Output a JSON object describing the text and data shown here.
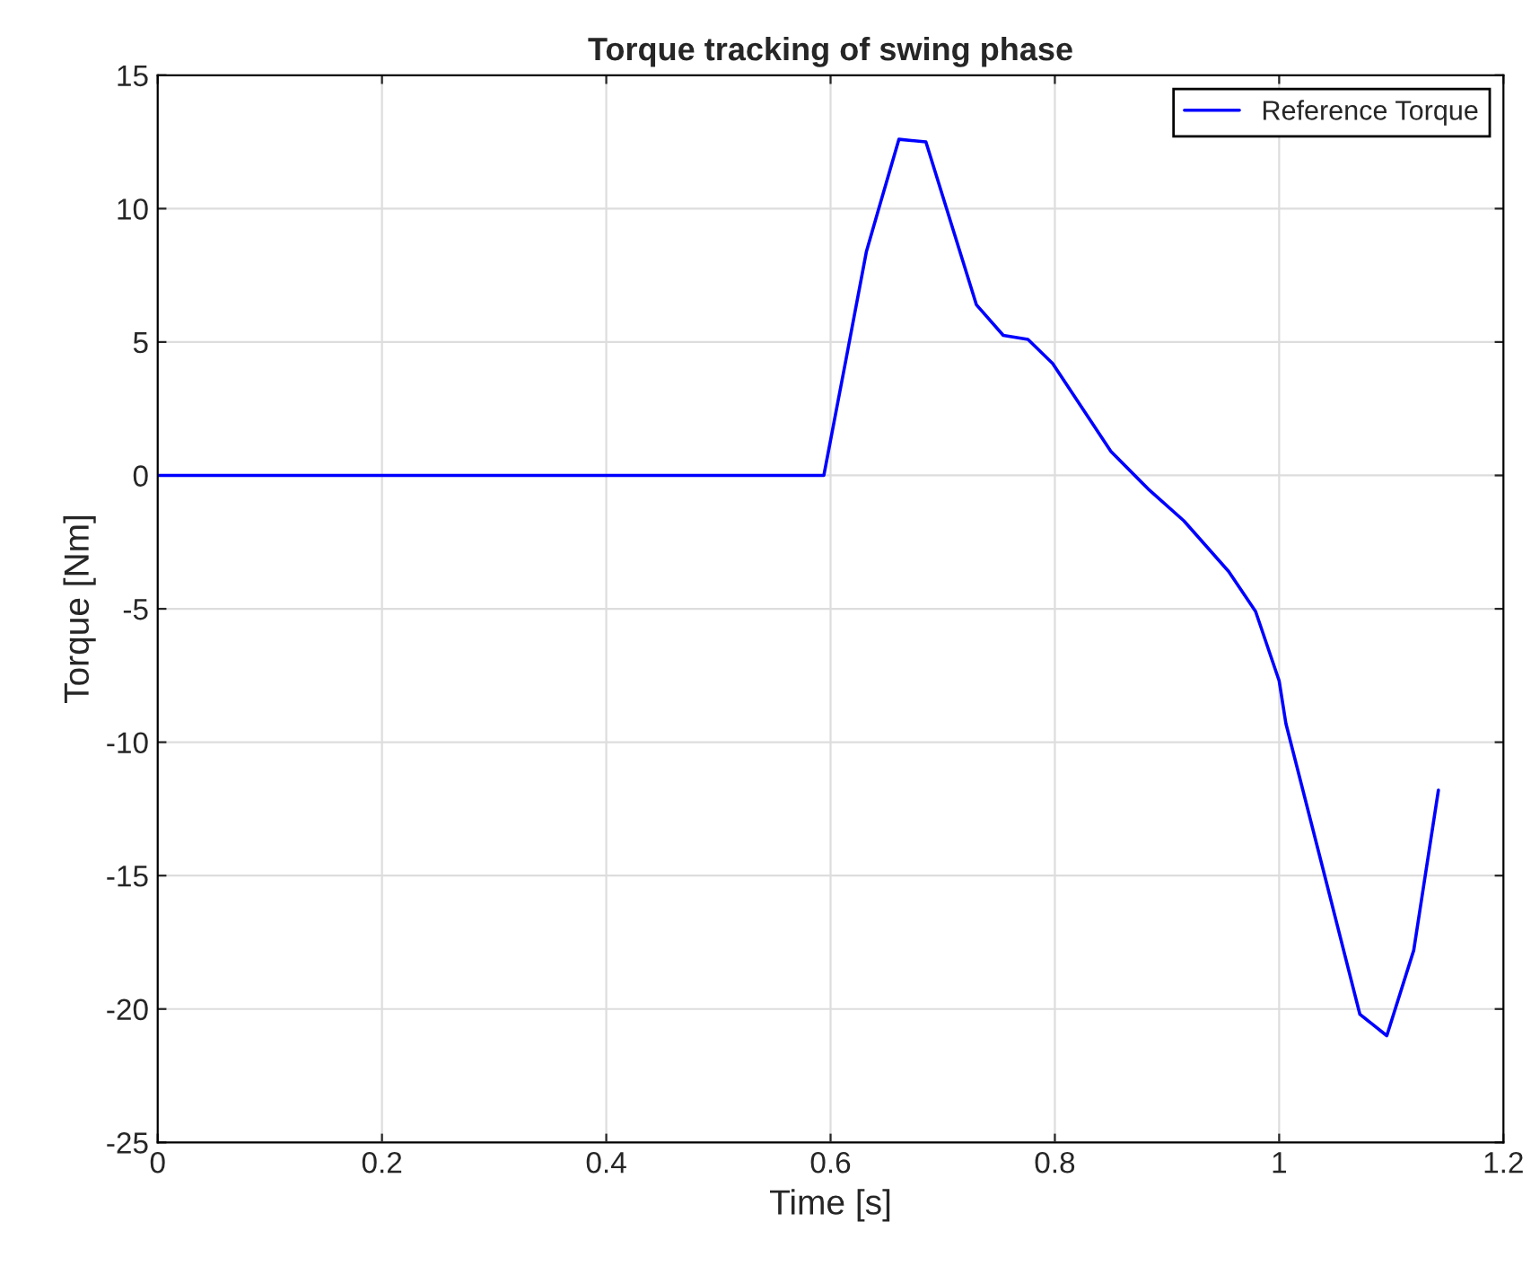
{
  "chart_data": {
    "type": "line",
    "title": "Torque tracking of swing phase",
    "xlabel": "Time [s]",
    "ylabel": "Torque [Nm]",
    "series": [
      {
        "name": "Reference Torque",
        "color": "#0000ff",
        "x": [
          0,
          0.594,
          0.614,
          0.632,
          0.643,
          0.661,
          0.685,
          0.73,
          0.754,
          0.776,
          0.798,
          0.85,
          0.883,
          0.915,
          0.955,
          0.979,
          1.0,
          1.006,
          1.043,
          1.072,
          1.096,
          1.12,
          1.142
        ],
        "values": [
          0,
          0,
          4.4,
          8.4,
          10.0,
          12.6,
          12.5,
          6.4,
          5.25,
          5.1,
          4.2,
          0.9,
          -0.5,
          -1.7,
          -3.6,
          -5.1,
          -7.7,
          -9.3,
          -15.4,
          -20.2,
          -21.0,
          -17.8,
          -11.8
        ]
      }
    ],
    "xlim": [
      0,
      1.2
    ],
    "xticks": [
      0,
      0.2,
      0.4,
      0.6,
      0.8,
      1,
      1.2
    ],
    "ylim": [
      -25,
      15
    ],
    "yticks": [
      -25,
      -20,
      -15,
      -10,
      -5,
      0,
      5,
      10,
      15
    ],
    "grid": true,
    "legend": "top right",
    "line_style": "solid",
    "marker": "none"
  }
}
